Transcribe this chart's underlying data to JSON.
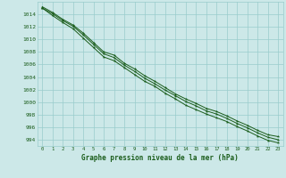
{
  "title": "Graphe pression niveau de la mer (hPa)",
  "background_color": "#cce8e8",
  "grid_color": "#99cccc",
  "line_color": "#1a5c1a",
  "text_color": "#1a5c1a",
  "x_hours": [
    0,
    1,
    2,
    3,
    4,
    5,
    6,
    7,
    8,
    9,
    10,
    11,
    12,
    13,
    14,
    15,
    16,
    17,
    18,
    19,
    20,
    21,
    22,
    23
  ],
  "y_max": [
    1015.2,
    1014.3,
    1013.2,
    1012.3,
    1011.0,
    1009.5,
    1008.0,
    1007.5,
    1006.2,
    1005.3,
    1004.2,
    1003.3,
    1002.3,
    1001.3,
    1000.5,
    999.8,
    999.0,
    998.5,
    997.8,
    997.0,
    996.3,
    995.5,
    994.8,
    994.5
  ],
  "y_mid": [
    1015.0,
    1014.1,
    1013.0,
    1012.1,
    1010.7,
    1009.2,
    1007.7,
    1007.1,
    1005.9,
    1004.9,
    1003.8,
    1002.9,
    1001.9,
    1001.0,
    1000.1,
    999.4,
    998.6,
    998.1,
    997.4,
    996.6,
    995.9,
    995.1,
    994.4,
    994.0
  ],
  "y_min": [
    1015.0,
    1013.8,
    1012.7,
    1011.7,
    1010.2,
    1008.7,
    1007.2,
    1006.6,
    1005.5,
    1004.4,
    1003.3,
    1002.5,
    1001.4,
    1000.5,
    999.5,
    998.8,
    998.1,
    997.5,
    996.9,
    996.1,
    995.4,
    994.6,
    993.9,
    993.5
  ],
  "ylim": [
    993.0,
    1016.0
  ],
  "yticks": [
    994,
    996,
    998,
    1000,
    1002,
    1004,
    1006,
    1008,
    1010,
    1012,
    1014
  ],
  "xlim": [
    -0.5,
    23.5
  ],
  "xticks": [
    0,
    1,
    2,
    3,
    4,
    5,
    6,
    7,
    8,
    9,
    10,
    11,
    12,
    13,
    14,
    15,
    16,
    17,
    18,
    19,
    20,
    21,
    22,
    23
  ]
}
